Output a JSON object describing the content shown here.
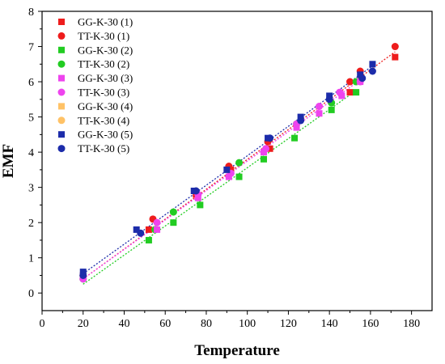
{
  "chart_data": {
    "type": "scatter",
    "title": "",
    "xlabel": "Temperature",
    "ylabel": "EMF",
    "xlim": [
      0,
      190
    ],
    "ylim": [
      -0.5,
      8
    ],
    "xticks": [
      0,
      20,
      40,
      60,
      80,
      100,
      120,
      140,
      160,
      180
    ],
    "yticks": [
      0,
      1,
      2,
      3,
      4,
      5,
      6,
      7,
      8
    ],
    "legend_position": "top-left",
    "grid": false,
    "series": [
      {
        "name": "GG-K-30 (1)",
        "marker": "square",
        "color": "#ee1c1c",
        "points": [
          [
            20,
            0.5
          ],
          [
            52,
            1.8
          ],
          [
            75,
            2.8
          ],
          [
            92,
            3.5
          ],
          [
            111,
            4.1
          ],
          [
            150,
            5.7
          ],
          [
            172,
            6.7
          ]
        ]
      },
      {
        "name": "TT-K-30 (1)",
        "marker": "circle",
        "color": "#ee1c1c",
        "points": [
          [
            20,
            0.5
          ],
          [
            54,
            2.1
          ],
          [
            91,
            3.6
          ],
          [
            110,
            4.3
          ],
          [
            150,
            6.0
          ],
          [
            155,
            6.3
          ],
          [
            172,
            7.0
          ]
        ]
      },
      {
        "name": "GG-K-30 (2)",
        "marker": "square",
        "color": "#22cc22",
        "points": [
          [
            20,
            0.5
          ],
          [
            52,
            1.5
          ],
          [
            64,
            2.0
          ],
          [
            77,
            2.5
          ],
          [
            96,
            3.3
          ],
          [
            108,
            3.8
          ],
          [
            123,
            4.4
          ],
          [
            141,
            5.2
          ],
          [
            153,
            5.7
          ]
        ]
      },
      {
        "name": "TT-K-30 (2)",
        "marker": "circle",
        "color": "#22cc22",
        "points": [
          [
            20,
            0.4
          ],
          [
            55,
            1.8
          ],
          [
            64,
            2.3
          ],
          [
            96,
            3.7
          ],
          [
            124,
            4.8
          ],
          [
            141,
            5.4
          ],
          [
            153,
            6.0
          ]
        ]
      },
      {
        "name": "GG-K-30 (3)",
        "marker": "square",
        "color": "#ee44ee",
        "points": [
          [
            20,
            0.5
          ],
          [
            56,
            1.8
          ],
          [
            76,
            2.7
          ],
          [
            91,
            3.3
          ],
          [
            108,
            4.0
          ],
          [
            124,
            4.7
          ],
          [
            135,
            5.1
          ],
          [
            146,
            5.6
          ],
          [
            155,
            6.0
          ]
        ]
      },
      {
        "name": "TT-K-30 (3)",
        "marker": "circle",
        "color": "#ee44ee",
        "points": [
          [
            20,
            0.4
          ],
          [
            56,
            2.0
          ],
          [
            76,
            2.8
          ],
          [
            92,
            3.4
          ],
          [
            109,
            4.1
          ],
          [
            124,
            4.8
          ],
          [
            135,
            5.3
          ],
          [
            145,
            5.7
          ],
          [
            155,
            6.0
          ]
        ]
      },
      {
        "name": "GG-K-30 (4)",
        "marker": "square",
        "color": "#ffc266",
        "points": []
      },
      {
        "name": "TT-K-30 (4)",
        "marker": "circle",
        "color": "#ffc266",
        "points": []
      },
      {
        "name": "GG-K-30 (5)",
        "marker": "square",
        "color": "#1c2caa",
        "points": [
          [
            20,
            0.6
          ],
          [
            46,
            1.8
          ],
          [
            74,
            2.9
          ],
          [
            90,
            3.5
          ],
          [
            110,
            4.4
          ],
          [
            126,
            5.0
          ],
          [
            140,
            5.6
          ],
          [
            155,
            6.2
          ],
          [
            161,
            6.5
          ]
        ]
      },
      {
        "name": "TT-K-30 (5)",
        "marker": "circle",
        "color": "#1c2caa",
        "points": [
          [
            20,
            0.5
          ],
          [
            48,
            1.7
          ],
          [
            75,
            2.9
          ],
          [
            111,
            4.4
          ],
          [
            126,
            4.9
          ],
          [
            140,
            5.5
          ],
          [
            156,
            6.1
          ],
          [
            161,
            6.3
          ]
        ]
      }
    ],
    "fit_lines": [
      {
        "color": "#ee1c1c",
        "x": [
          20,
          172
        ],
        "y": [
          0.4,
          6.85
        ]
      },
      {
        "color": "#22cc22",
        "x": [
          20,
          153
        ],
        "y": [
          0.25,
          5.75
        ]
      },
      {
        "color": "#ee44ee",
        "x": [
          20,
          155
        ],
        "y": [
          0.4,
          6.05
        ]
      },
      {
        "color": "#1c2caa",
        "x": [
          20,
          161
        ],
        "y": [
          0.55,
          6.45
        ]
      }
    ]
  }
}
